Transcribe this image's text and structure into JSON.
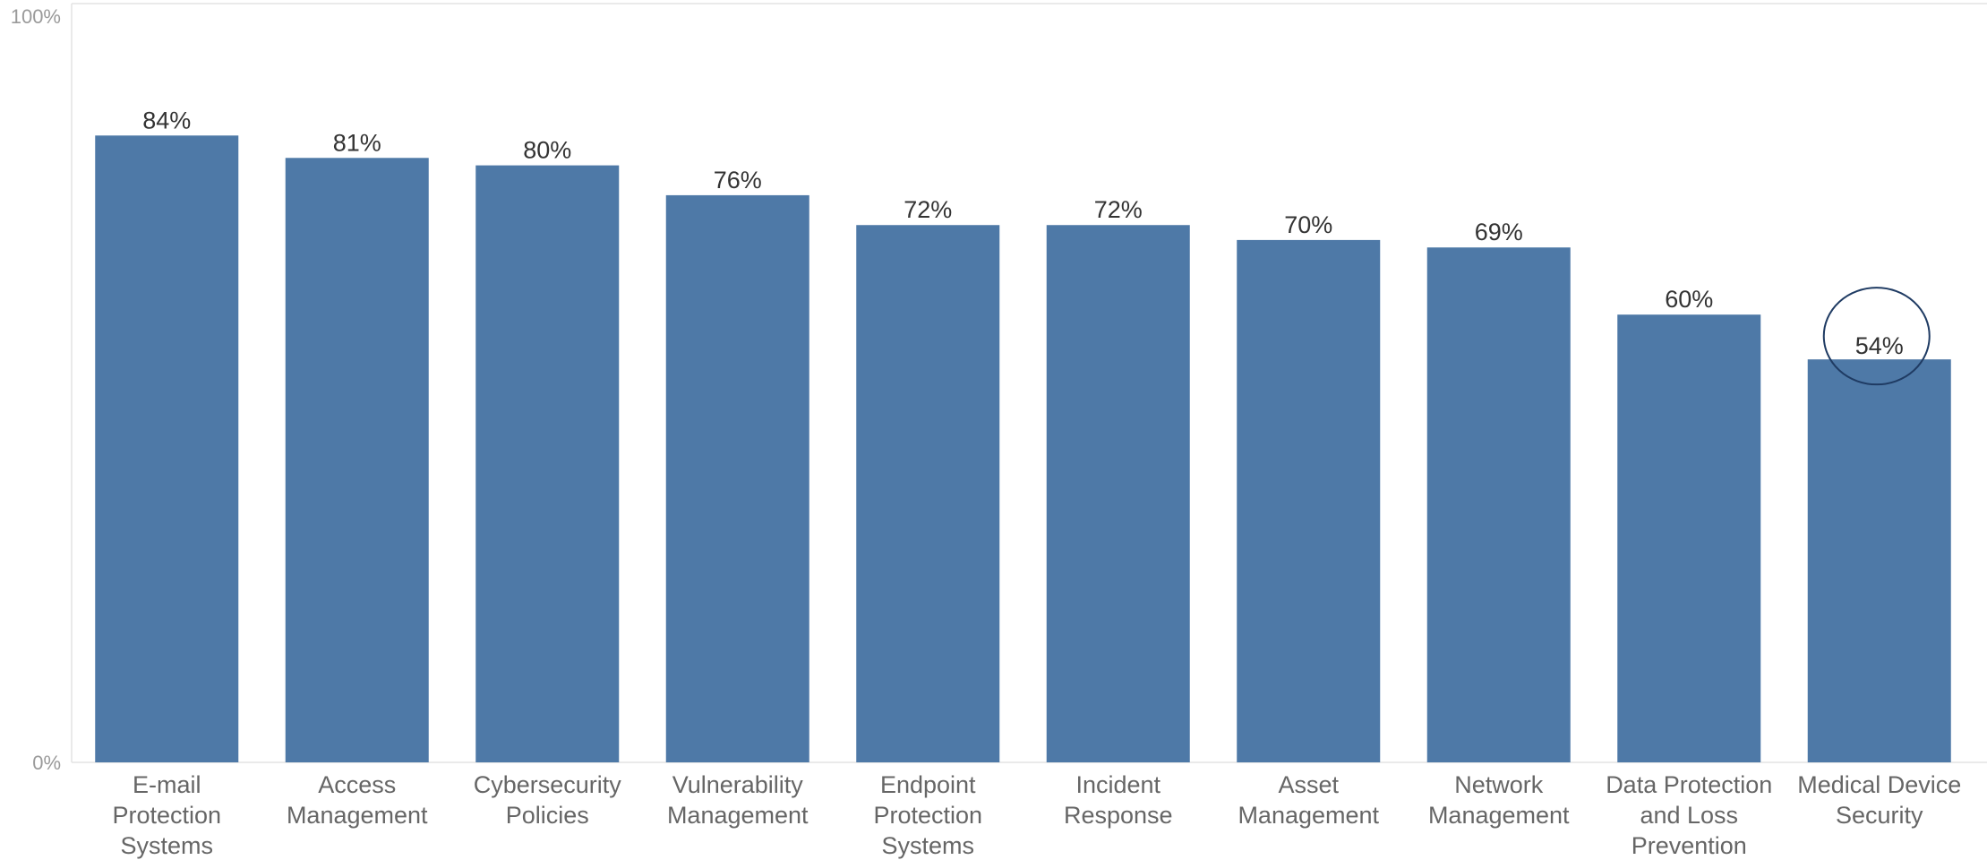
{
  "chart_data": {
    "type": "bar",
    "categories": [
      "E-mail Protection Systems",
      "Access Management",
      "Cybersecurity Policies",
      "Vulnerability Management",
      "Endpoint Protection Systems",
      "Incident Response",
      "Asset Management",
      "Network Management",
      "Data Protection and Loss Prevention",
      "Medical Device Security"
    ],
    "category_lines": [
      [
        "E-mail",
        "Protection",
        "Systems"
      ],
      [
        "Access",
        "Management"
      ],
      [
        "Cybersecurity",
        "Policies"
      ],
      [
        "Vulnerability",
        "Management"
      ],
      [
        "Endpoint",
        "Protection",
        "Systems"
      ],
      [
        "Incident",
        "Response"
      ],
      [
        "Asset",
        "Management"
      ],
      [
        "Network",
        "Management"
      ],
      [
        "Data Protection",
        "and Loss",
        "Prevention"
      ],
      [
        "Medical Device",
        "Security"
      ]
    ],
    "values": [
      84,
      81,
      80,
      76,
      72,
      72,
      70,
      69,
      60,
      54
    ],
    "data_labels": [
      "84%",
      "81%",
      "80%",
      "76%",
      "72%",
      "72%",
      "70%",
      "69%",
      "60%",
      "54%"
    ],
    "ylim": [
      0,
      100
    ],
    "y_ticks": [
      {
        "value": 100,
        "label": "100%"
      },
      {
        "value": 0,
        "label": "0%"
      }
    ],
    "highlight_index": 9,
    "bar_color": "#4e79a7",
    "highlight_color": "#1f3b63",
    "title": "",
    "xlabel": "",
    "ylabel": "",
    "grid": false
  }
}
